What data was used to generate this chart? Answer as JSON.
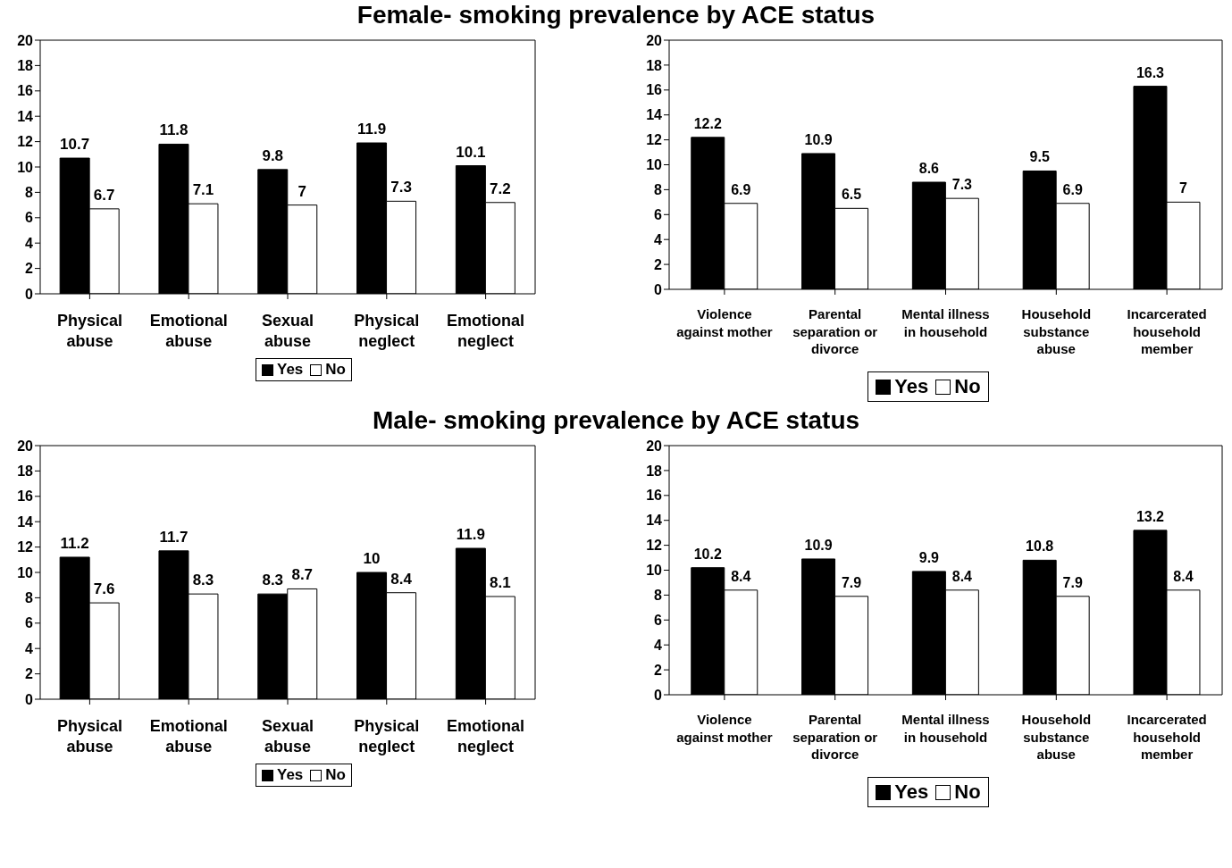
{
  "chart_data": [
    {
      "type": "bar",
      "title": "Female- smoking prevalence by ACE status",
      "categories": [
        "Physical abuse",
        "Emotional abuse",
        "Sexual abuse",
        "Physical neglect",
        "Emotional neglect"
      ],
      "series": [
        {
          "name": "Yes",
          "color": "#000000",
          "values": [
            10.7,
            11.8,
            9.8,
            11.9,
            10.1
          ]
        },
        {
          "name": "No",
          "color": "#ffffff",
          "values": [
            6.7,
            7.1,
            7,
            7.3,
            7.2
          ]
        }
      ],
      "ylim": [
        0,
        20
      ],
      "yticks": [
        0,
        2,
        4,
        6,
        8,
        10,
        12,
        14,
        16,
        18,
        20
      ],
      "data_labels": true,
      "grid": false,
      "legend": "bottom"
    },
    {
      "type": "bar",
      "categories": [
        "Violence against mother",
        "Parental separation or divorce",
        "Mental illness in household",
        "Household substance abuse",
        "Incarcerated household member"
      ],
      "series": [
        {
          "name": "Yes",
          "color": "#000000",
          "values": [
            12.2,
            10.9,
            8.6,
            9.5,
            16.3
          ]
        },
        {
          "name": "No",
          "color": "#ffffff",
          "values": [
            6.9,
            6.5,
            7.3,
            6.9,
            7
          ]
        }
      ],
      "ylim": [
        0,
        20
      ],
      "yticks": [
        0,
        2,
        4,
        6,
        8,
        10,
        12,
        14,
        16,
        18,
        20
      ],
      "data_labels": true,
      "grid": false,
      "legend": "bottom"
    },
    {
      "type": "bar",
      "title": "Male- smoking prevalence by ACE status",
      "categories": [
        "Physical abuse",
        "Emotional abuse",
        "Sexual abuse",
        "Physical neglect",
        "Emotional neglect"
      ],
      "series": [
        {
          "name": "Yes",
          "color": "#000000",
          "values": [
            11.2,
            11.7,
            8.3,
            10,
            11.9
          ]
        },
        {
          "name": "No",
          "color": "#ffffff",
          "values": [
            7.6,
            8.3,
            8.7,
            8.4,
            8.1
          ]
        }
      ],
      "ylim": [
        0,
        20
      ],
      "yticks": [
        0,
        2,
        4,
        6,
        8,
        10,
        12,
        14,
        16,
        18,
        20
      ],
      "data_labels": true,
      "grid": false,
      "legend": "bottom"
    },
    {
      "type": "bar",
      "categories": [
        "Violence against mother",
        "Parental separation or divorce",
        "Mental illness in household",
        "Household substance abuse",
        "Incarcerated household member"
      ],
      "series": [
        {
          "name": "Yes",
          "color": "#000000",
          "values": [
            10.2,
            10.9,
            9.9,
            10.8,
            13.2
          ]
        },
        {
          "name": "No",
          "color": "#ffffff",
          "values": [
            8.4,
            7.9,
            8.4,
            7.9,
            8.4
          ]
        }
      ],
      "ylim": [
        0,
        20
      ],
      "yticks": [
        0,
        2,
        4,
        6,
        8,
        10,
        12,
        14,
        16,
        18,
        20
      ],
      "data_labels": true,
      "grid": false,
      "legend": "bottom"
    }
  ]
}
